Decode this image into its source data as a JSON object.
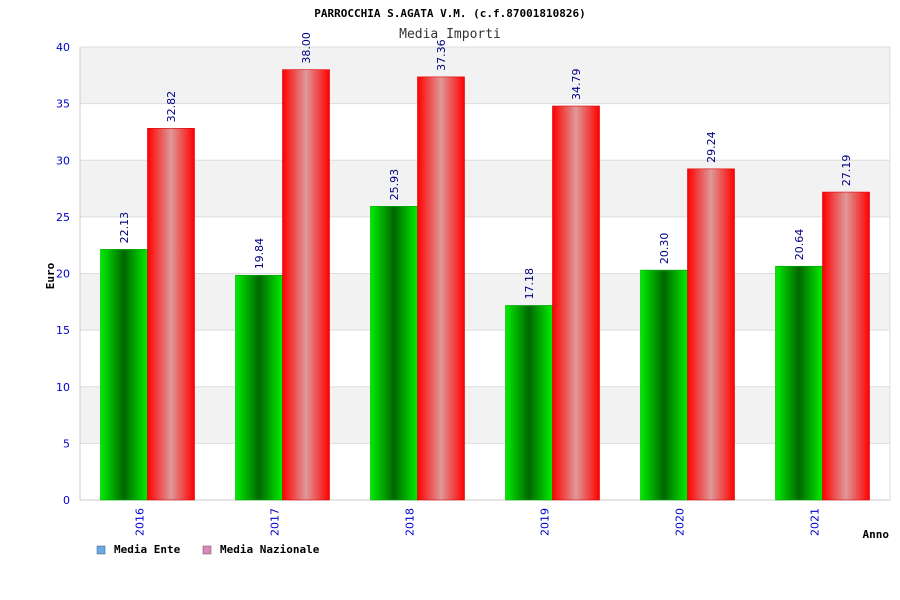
{
  "chart_data": {
    "type": "bar",
    "title": "PARROCCHIA S.AGATA V.M. (c.f.87001810826)",
    "subtitle": "Media Importi",
    "xlabel": "Anno",
    "ylabel": "Euro",
    "categories": [
      "2016",
      "2017",
      "2018",
      "2019",
      "2020",
      "2021"
    ],
    "series": [
      {
        "name": "Media Ente",
        "values": [
          22.13,
          19.84,
          25.93,
          17.18,
          20.3,
          20.64
        ],
        "labels": [
          "22.13",
          "19.84",
          "25.93",
          "17.18",
          "20.30",
          "20.64"
        ],
        "color": "#00cc00",
        "legend_color": "#66aaee"
      },
      {
        "name": "Media Nazionale",
        "values": [
          32.82,
          38.0,
          37.36,
          34.79,
          29.24,
          27.19
        ],
        "labels": [
          "32.82",
          "38.00",
          "37.36",
          "34.79",
          "29.24",
          "27.19"
        ],
        "color": "#ff0000",
        "legend_color": "#dd88bb"
      }
    ],
    "ylim": [
      0,
      40
    ],
    "yticks": [
      0,
      5,
      10,
      15,
      20,
      25,
      30,
      35,
      40
    ],
    "grid": true,
    "legend": "bottom-left",
    "band_color": "#f2f2f2"
  }
}
